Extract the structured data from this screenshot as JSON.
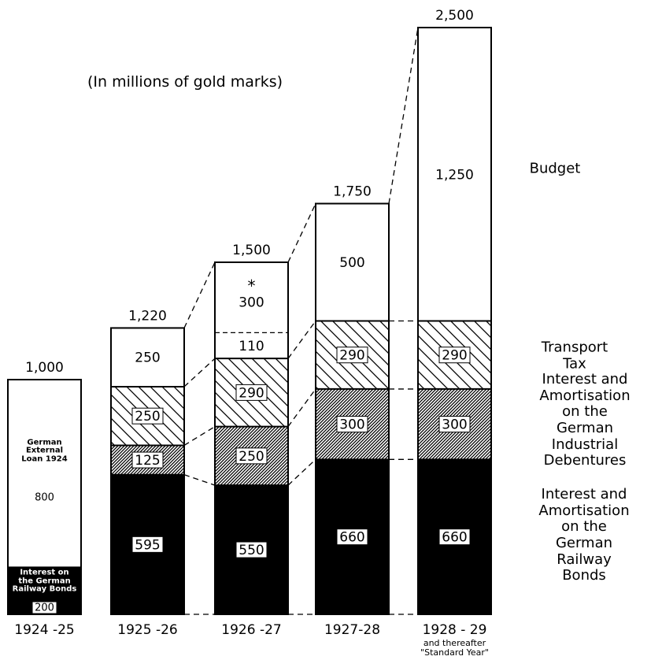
{
  "chart_data": {
    "type": "stacked_bar",
    "subtitle": "(In millions of gold marks)",
    "categories": [
      "1924 -25",
      "1925 -26",
      "1926 -27",
      "1927-28",
      "1928 - 29"
    ],
    "category_note": {
      "index": 4,
      "text": "and thereafter\n\"Standard Year\""
    },
    "ylim": [
      0,
      2500
    ],
    "series": [
      {
        "name": "Interest and\nAmortisation\non the German\nRailway Bonds",
        "color": "#000000",
        "values": [
          200,
          595,
          550,
          660,
          660
        ]
      },
      {
        "name": "Interest and\nAmortisation\non the German\nIndustrial Debentures",
        "color": "#000000",
        "pattern": "dense-hatch",
        "values": [
          null,
          125,
          250,
          300,
          300
        ]
      },
      {
        "name": "Transport Tax",
        "color": "#000000",
        "pattern": "hatch",
        "values": [
          null,
          250,
          290,
          290,
          290
        ]
      },
      {
        "name": "Budget",
        "color": "#ffffff",
        "values": [
          800,
          250,
          110,
          500,
          1250
        ],
        "value_labels": [
          "800",
          "250",
          "110",
          "500",
          "1,250"
        ]
      },
      {
        "color": "#ffffff",
        "values": [
          null,
          null,
          300,
          null,
          null
        ],
        "note_mark": "*"
      }
    ],
    "totals": [
      1000,
      1220,
      1500,
      1750,
      2500
    ],
    "total_labels": [
      "1,000",
      "1,220",
      "1,500",
      "1,750",
      "2,500"
    ],
    "segment_notes": [
      {
        "series": 0,
        "category": 0,
        "text": "Interest on\nthe German\nRailway Bonds"
      },
      {
        "series": 3,
        "category": 0,
        "text": "German\nExternal\nLoan 1924"
      }
    ]
  }
}
